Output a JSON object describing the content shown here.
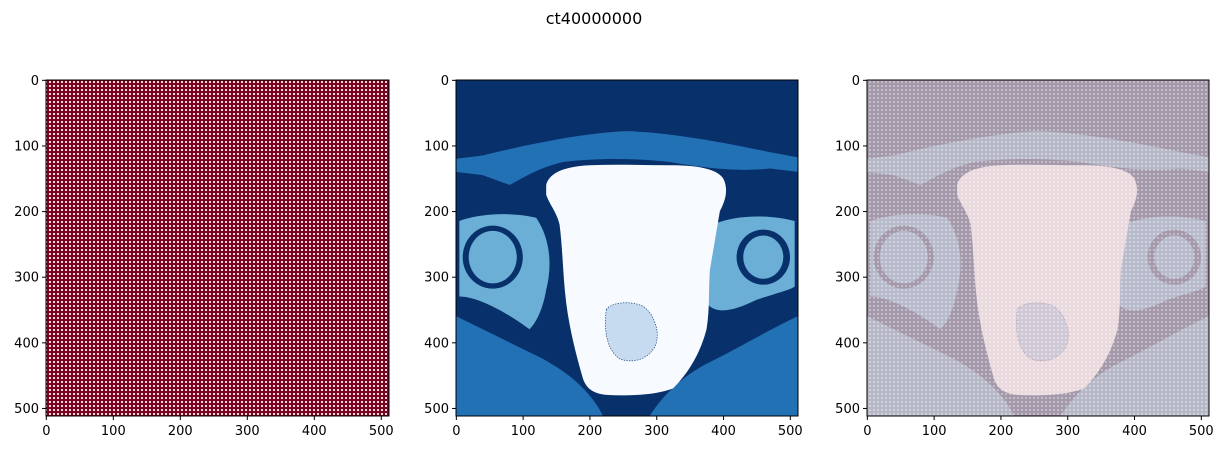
{
  "figure": {
    "suptitle": "ct40000000"
  },
  "chart_data": [
    {
      "type": "heatmap",
      "panel": "left",
      "description": "dense regular grid pattern",
      "colors": {
        "base": "#7a0422",
        "grid": "#f2d6d6"
      },
      "x_range": [
        0,
        511
      ],
      "y_range": [
        0,
        511
      ],
      "y_inverted": true,
      "xticks": [
        0,
        100,
        200,
        300,
        400,
        500
      ],
      "yticks": [
        0,
        100,
        200,
        300,
        400,
        500
      ]
    },
    {
      "type": "heatmap",
      "panel": "middle",
      "colormap": "Blues",
      "colors": {
        "background": "#08306b",
        "outer_band": "#2271b5",
        "bone": "#6baed6",
        "inner_region": "#c6dbef",
        "central_region": "#f7fbff"
      },
      "x_range": [
        0,
        511
      ],
      "y_range": [
        0,
        511
      ],
      "y_inverted": true,
      "xticks": [
        0,
        100,
        200,
        300,
        400,
        500
      ],
      "yticks": [
        0,
        100,
        200,
        300,
        400,
        500
      ]
    },
    {
      "type": "heatmap",
      "panel": "right",
      "description": "overlay of left and middle panels",
      "colors": {
        "background": "#a499aa",
        "outer_band": "#b6b8c8",
        "central_region": "#eadade"
      },
      "x_range": [
        0,
        511
      ],
      "y_range": [
        0,
        511
      ],
      "y_inverted": true,
      "xticks": [
        0,
        100,
        200,
        300,
        400,
        500
      ],
      "yticks": [
        0,
        100,
        200,
        300,
        400,
        500
      ]
    }
  ]
}
